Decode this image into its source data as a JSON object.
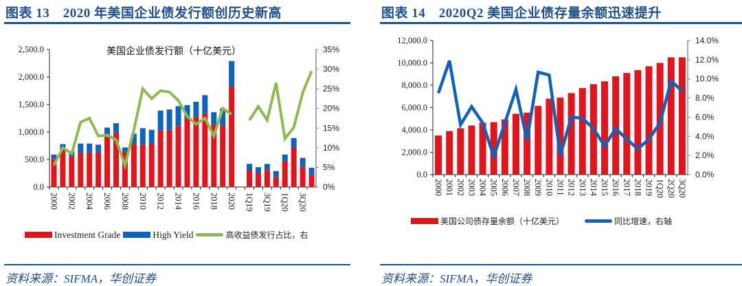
{
  "left": {
    "title": "图表 13　2020 年美国企业债发行额创历史新高",
    "source": "资料来源：SIFMA，华创证券",
    "legend": {
      "ig": "Investment Grade",
      "hy": "High Yield",
      "share": "高收益债发行占比，右"
    }
  },
  "right": {
    "title": "图表 14　2020Q2 美国企业债存量余额迅速提升",
    "source": "资料来源：SIFMA，华创证券",
    "legend": {
      "outstanding": "美国公司债存量余额（十亿美元）",
      "yoy": "同比增速，右轴"
    }
  },
  "colors": {
    "title_blue": "#1f4e8c",
    "ig_red": "#e3141c",
    "hy_blue": "#0e63bd",
    "share_green": "#8fba52",
    "yoy_blue": "#0e63bd"
  },
  "chart_data": [
    {
      "type": "bar",
      "stacked": true,
      "title": "美国企业债发行额（十亿美元）",
      "categories": [
        "2000",
        "2001",
        "2002",
        "2003",
        "2004",
        "2005",
        "2006",
        "2007",
        "2008",
        "2009",
        "2010",
        "2011",
        "2012",
        "2013",
        "2014",
        "2015",
        "2016",
        "2017",
        "2018",
        "2019",
        "2020",
        "",
        "1Q19",
        "2Q19",
        "3Q19",
        "4Q19",
        "1Q20",
        "2Q20",
        "3Q20",
        "4Q20"
      ],
      "tick_labels": [
        "2000",
        "2002",
        "2004",
        "2006",
        "2008",
        "2010",
        "2012",
        "2014",
        "2016",
        "2018",
        "2020",
        "1Q19",
        "3Q19",
        "1Q20",
        "3Q20"
      ],
      "series": [
        {
          "name": "Investment Grade",
          "axis": "left",
          "values": [
            510,
            680,
            560,
            620,
            620,
            630,
            900,
            990,
            640,
            780,
            770,
            780,
            1030,
            1040,
            1110,
            1240,
            1280,
            1340,
            1140,
            1120,
            1830,
            null,
            300,
            250,
            310,
            180,
            470,
            720,
            370,
            220
          ]
        },
        {
          "name": "High Yield",
          "axis": "left",
          "values": [
            80,
            100,
            90,
            170,
            170,
            140,
            180,
            170,
            80,
            190,
            300,
            260,
            360,
            370,
            360,
            250,
            270,
            330,
            220,
            310,
            460,
            null,
            120,
            110,
            110,
            110,
            120,
            170,
            160,
            130
          ]
        },
        {
          "name": "高收益债发行占比，右",
          "type": "line",
          "axis": "right",
          "values": [
            5.5,
            10.0,
            8.5,
            16.5,
            17.5,
            13.0,
            13.2,
            12.0,
            5.5,
            14.5,
            25.0,
            22.5,
            24.5,
            24.2,
            22.0,
            18.0,
            16.0,
            17.5,
            13.0,
            20.0,
            18.5,
            null,
            17.0,
            20.5,
            17.0,
            26.5,
            12.3,
            15.2,
            24.0,
            29.5
          ]
        }
      ],
      "xlabel": "",
      "ylabel": "",
      "ylim": [
        0,
        2500
      ],
      "yticks": [
        "0.0",
        "500.0",
        "1,000.0",
        "1,500.0",
        "2,000.0",
        "2,500.0"
      ],
      "y2lim": [
        0,
        35
      ],
      "y2ticks": [
        "0%",
        "5%",
        "10%",
        "15%",
        "20%",
        "25%",
        "30%",
        "35%"
      ],
      "legend_position": "bottom",
      "grid": false
    },
    {
      "type": "bar",
      "title": "",
      "categories": [
        "2000",
        "2001",
        "2002",
        "2003",
        "2004",
        "2005",
        "2006",
        "2007",
        "2008",
        "2009",
        "2010",
        "2011",
        "2012",
        "2013",
        "2014",
        "2015",
        "2016",
        "2017",
        "2018",
        "2019",
        "1Q20",
        "2Q20",
        "3Q20"
      ],
      "series": [
        {
          "name": "美国公司债存量余额（十亿美元）",
          "axis": "left",
          "values": [
            3500,
            3900,
            4150,
            4400,
            4650,
            4700,
            4950,
            5450,
            5550,
            6150,
            6800,
            6900,
            7300,
            7750,
            8100,
            8350,
            8800,
            9100,
            9350,
            9700,
            10000,
            10500,
            10500
          ]
        },
        {
          "name": "同比增速，右轴",
          "type": "line",
          "axis": "right",
          "values": [
            8.5,
            11.9,
            5.2,
            7.1,
            5.4,
            1.9,
            5.4,
            8.9,
            3.6,
            10.7,
            10.4,
            2.0,
            6.0,
            5.9,
            4.8,
            3.0,
            4.8,
            3.7,
            2.7,
            3.7,
            5.4,
            9.8,
            8.7
          ]
        }
      ],
      "xlabel": "",
      "ylabel": "",
      "ylim": [
        0,
        12000
      ],
      "yticks": [
        "0.0",
        "2,000.0",
        "4,000.0",
        "6,000.0",
        "8,000.0",
        "10,000.0",
        "12,000.0"
      ],
      "y2lim": [
        0,
        14
      ],
      "y2ticks": [
        "0.0%",
        "2.0%",
        "4.0%",
        "6.0%",
        "8.0%",
        "10.0%",
        "12.0%",
        "14.0%"
      ],
      "legend_position": "bottom",
      "grid": false
    }
  ]
}
